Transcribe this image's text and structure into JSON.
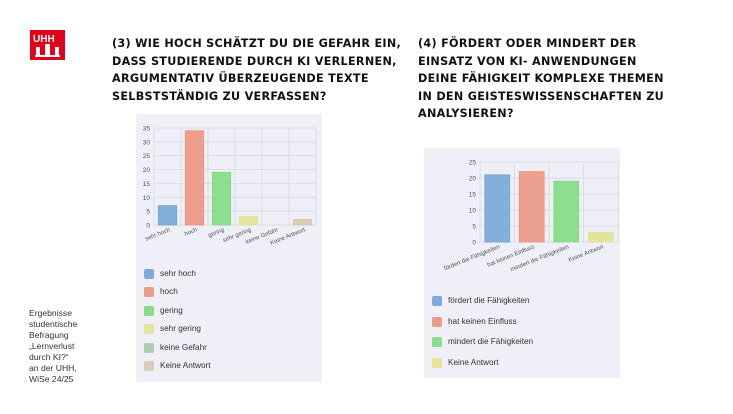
{
  "logo": {
    "text": "UHH"
  },
  "side_note": [
    "Ergebnisse",
    "studentische",
    "Befragung",
    "„Lernverlust",
    "durch KI?“",
    "an der UHH,",
    "WiSe 24/25"
  ],
  "colors": {
    "blue": "#6fa3d6",
    "red": "#ec9079",
    "green": "#7dda7d",
    "yellow": "#e2e28c",
    "sage": "#a9c9a6",
    "tan": "#d8c5ae",
    "logo_red": "#e2001a"
  },
  "chart_data": [
    {
      "type": "bar",
      "title_lines": [
        "(3) WIE HOCH SCHÄTZT DU DIE GEFAHR EIN,",
        "DASS STUDIERENDE DURCH KI VERLERNEN,",
        "ARGUMENTATIV ÜBERZEUGENDE TEXTE",
        "SELBSTSTÄNDIG ZU VERFASSEN?"
      ],
      "categories": [
        "sehr hoch",
        "hoch",
        "gering",
        "sehr gering",
        "keine Gefahr",
        "Keine Antwort"
      ],
      "values": [
        7,
        34,
        19,
        3,
        0,
        2
      ],
      "colors": [
        "#6fa3d6",
        "#ec9079",
        "#7dda7d",
        "#e2e28c",
        "#a9c9a6",
        "#d8c5ae"
      ],
      "yticks": [
        0,
        5,
        10,
        15,
        20,
        25,
        30,
        35
      ],
      "ylim": [
        0,
        35
      ],
      "grid": true,
      "legend_position": "bottom"
    },
    {
      "type": "bar",
      "title_lines": [
        "(4) FÖRDERT ODER MINDERT DER",
        "EINSATZ VON KI- ANWENDUNGEN",
        "DEINE FÄHIGKEIT KOMPLEXE THEMEN",
        "IN DEN GEISTESWISSENSCHAFTEN ZU",
        "ANALYSIEREN?"
      ],
      "categories": [
        "fördert die Fähigkeiten",
        "hat keinen Einfluss",
        "mindert die Fähigkeiten",
        "Keine Antwort"
      ],
      "values": [
        21,
        22,
        19,
        3
      ],
      "colors": [
        "#6fa3d6",
        "#ec9079",
        "#7dda7d",
        "#e2e28c"
      ],
      "yticks": [
        0,
        5,
        10,
        15,
        20,
        25
      ],
      "ylim": [
        0,
        25
      ],
      "grid": true,
      "legend_position": "bottom"
    }
  ]
}
